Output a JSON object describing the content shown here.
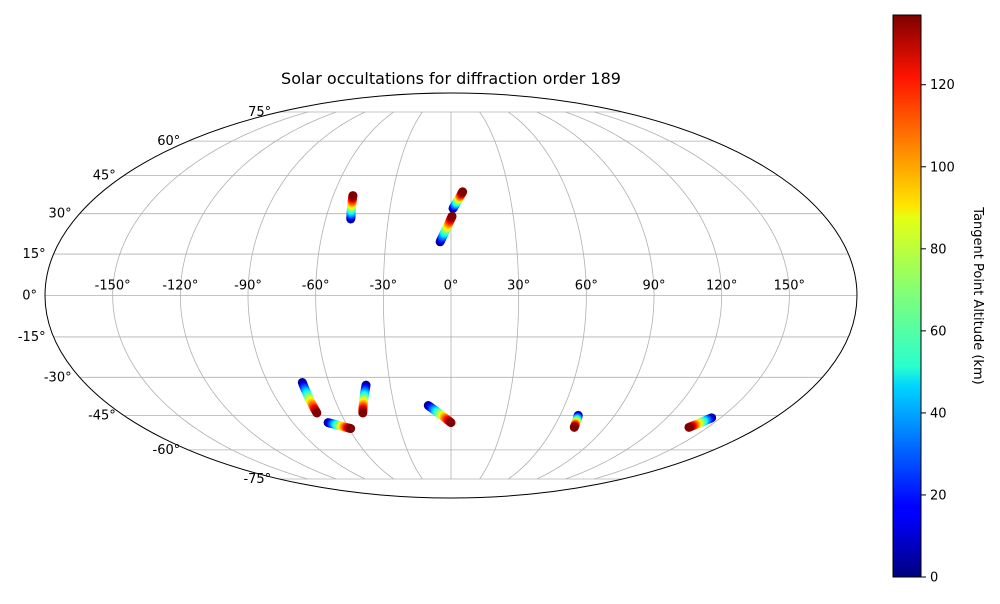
{
  "chart_data": {
    "type": "scatter",
    "projection": "mollweide",
    "title": "Solar occultations for diffraction order 189",
    "xlabel": "",
    "ylabel": "",
    "grid": true,
    "x_ticks": [
      "-150°",
      "-120°",
      "-90°",
      "-60°",
      "-30°",
      "0°",
      "30°",
      "60°",
      "90°",
      "120°",
      "150°"
    ],
    "y_ticks": [
      "-75°",
      "-60°",
      "-45°",
      "-30°",
      "-15°",
      "0°",
      "15°",
      "30°",
      "45°",
      "60°",
      "75°"
    ],
    "colorbar": {
      "label": "Tangent Point Altitude (km)",
      "colormap": "jet",
      "range": [
        0,
        137
      ],
      "ticks": [
        "0",
        "20",
        "40",
        "60",
        "80",
        "100",
        "120"
      ]
    },
    "tracks": [
      {
        "lon_start": -48,
        "lat_start": 28,
        "lon_end": -50,
        "lat_end": 37,
        "alt_start": 0,
        "alt_end": 137
      },
      {
        "lon_start": 1,
        "lat_start": 32,
        "lon_end": 6,
        "lat_end": 38.5,
        "alt_start": 0,
        "alt_end": 137
      },
      {
        "lon_start": -5,
        "lat_start": 19.5,
        "lon_end": 0.5,
        "lat_end": 29,
        "alt_start": 0,
        "alt_end": 137
      },
      {
        "lon_start": -73,
        "lat_start": -32,
        "lon_end": -73,
        "lat_end": -44,
        "alt_start": 0,
        "alt_end": 137
      },
      {
        "lon_start": -42,
        "lat_start": -33,
        "lon_end": -48,
        "lat_end": -44,
        "alt_start": 0,
        "alt_end": 137
      },
      {
        "lon_start": -70,
        "lat_start": -48,
        "lon_end": -59,
        "lat_end": -50.5,
        "alt_start": 0,
        "alt_end": 137
      },
      {
        "lon_start": -12,
        "lat_start": -41,
        "lon_end": 0,
        "lat_end": -48,
        "alt_start": 0,
        "alt_end": 137
      },
      {
        "lon_start": 70,
        "lat_start": -45,
        "lon_end": 72,
        "lat_end": -50,
        "alt_start": 0,
        "alt_end": 137
      },
      {
        "lon_start": 145,
        "lat_start": -46,
        "lon_end": 139,
        "lat_end": -50,
        "alt_start": 0,
        "alt_end": 137
      }
    ]
  }
}
